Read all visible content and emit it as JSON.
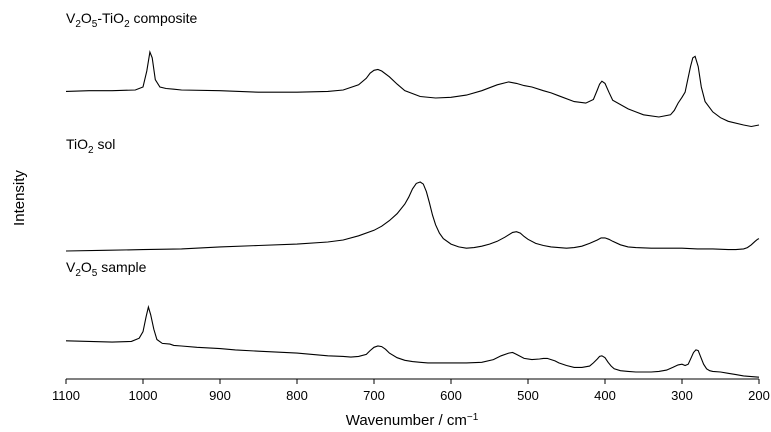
{
  "chart_data": {
    "type": "line",
    "xlabel": "Wavenumber / cm",
    "xlabel_sup": "−1",
    "ylabel": "Intensity",
    "xlim": [
      1100,
      200
    ],
    "x_reversed": true,
    "x_ticks": [
      "1100",
      "1000",
      "900",
      "800",
      "700",
      "600",
      "500",
      "400",
      "300",
      "200"
    ],
    "y_ticks_shown": false,
    "series": [
      {
        "name_parts": [
          {
            "t": "V",
            "sub": false
          },
          {
            "t": "2",
            "sub": true
          },
          {
            "t": "O",
            "sub": false
          },
          {
            "t": "5",
            "sub": true
          },
          {
            "t": "-TiO",
            "sub": false
          },
          {
            "t": "2",
            "sub": true
          },
          {
            "t": " composite",
            "sub": false
          }
        ],
        "x": [
          1100,
          1070,
          1040,
          1010,
          1000,
          995,
          991,
          988,
          984,
          978,
          970,
          960,
          950,
          900,
          850,
          800,
          760,
          740,
          720,
          710,
          705,
          700,
          695,
          690,
          680,
          670,
          660,
          640,
          620,
          600,
          580,
          560,
          540,
          525,
          515,
          505,
          495,
          480,
          470,
          460,
          440,
          425,
          415,
          410,
          407,
          404,
          400,
          395,
          390,
          370,
          350,
          330,
          315,
          310,
          305,
          300,
          296,
          293,
          289,
          286,
          283,
          279,
          275,
          270,
          260,
          250,
          240,
          220,
          210,
          200
        ],
        "y": [
          0.46,
          0.47,
          0.47,
          0.48,
          0.52,
          0.74,
          1.0,
          0.92,
          0.62,
          0.52,
          0.5,
          0.49,
          0.48,
          0.47,
          0.45,
          0.45,
          0.46,
          0.48,
          0.55,
          0.64,
          0.71,
          0.75,
          0.76,
          0.74,
          0.66,
          0.56,
          0.47,
          0.39,
          0.37,
          0.38,
          0.41,
          0.47,
          0.55,
          0.59,
          0.57,
          0.54,
          0.52,
          0.47,
          0.44,
          0.4,
          0.32,
          0.3,
          0.35,
          0.48,
          0.56,
          0.6,
          0.57,
          0.45,
          0.34,
          0.22,
          0.14,
          0.11,
          0.14,
          0.2,
          0.3,
          0.38,
          0.45,
          0.6,
          0.8,
          0.92,
          0.94,
          0.8,
          0.52,
          0.32,
          0.18,
          0.1,
          0.05,
          0.0,
          -0.02,
          0.0
        ]
      },
      {
        "name_parts": [
          {
            "t": "TiO",
            "sub": false
          },
          {
            "t": "2",
            "sub": true
          },
          {
            "t": " sol",
            "sub": false
          }
        ],
        "x": [
          1100,
          1050,
          1000,
          950,
          900,
          850,
          800,
          760,
          740,
          720,
          700,
          690,
          680,
          670,
          660,
          655,
          650,
          645,
          640,
          636,
          632,
          628,
          624,
          620,
          615,
          610,
          600,
          590,
          580,
          570,
          560,
          550,
          540,
          530,
          520,
          515,
          510,
          505,
          500,
          490,
          480,
          470,
          460,
          450,
          440,
          430,
          420,
          410,
          405,
          400,
          395,
          390,
          380,
          370,
          360,
          340,
          320,
          300,
          280,
          260,
          240,
          230,
          220,
          215,
          210,
          205,
          202,
          200
        ],
        "y": [
          0.0,
          0.01,
          0.02,
          0.03,
          0.06,
          0.08,
          0.1,
          0.13,
          0.16,
          0.22,
          0.3,
          0.36,
          0.44,
          0.54,
          0.68,
          0.78,
          0.9,
          0.98,
          1.0,
          0.97,
          0.86,
          0.7,
          0.52,
          0.38,
          0.26,
          0.18,
          0.1,
          0.06,
          0.04,
          0.05,
          0.07,
          0.1,
          0.14,
          0.2,
          0.27,
          0.28,
          0.26,
          0.21,
          0.17,
          0.11,
          0.08,
          0.06,
          0.05,
          0.04,
          0.05,
          0.07,
          0.11,
          0.16,
          0.19,
          0.19,
          0.17,
          0.14,
          0.09,
          0.06,
          0.05,
          0.04,
          0.04,
          0.04,
          0.03,
          0.03,
          0.02,
          0.02,
          0.03,
          0.05,
          0.09,
          0.14,
          0.17,
          0.18
        ]
      },
      {
        "name_parts": [
          {
            "t": "V",
            "sub": false
          },
          {
            "t": "2",
            "sub": true
          },
          {
            "t": "O",
            "sub": false
          },
          {
            "t": "5",
            "sub": true
          },
          {
            "t": " sample",
            "sub": false
          }
        ],
        "x": [
          1100,
          1070,
          1040,
          1015,
          1005,
          1000,
          996,
          993,
          990,
          986,
          982,
          975,
          965,
          960,
          950,
          930,
          900,
          880,
          850,
          800,
          760,
          740,
          730,
          720,
          710,
          705,
          700,
          695,
          690,
          685,
          680,
          670,
          660,
          650,
          640,
          630,
          620,
          600,
          580,
          560,
          545,
          535,
          525,
          520,
          515,
          505,
          495,
          485,
          480,
          475,
          470,
          465,
          460,
          450,
          440,
          430,
          420,
          415,
          410,
          407,
          404,
          400,
          396,
          392,
          388,
          380,
          370,
          360,
          350,
          340,
          330,
          320,
          312,
          305,
          300,
          296,
          292,
          288,
          285,
          282,
          279,
          276,
          272,
          268,
          264,
          260,
          250,
          240,
          230,
          220,
          210,
          200
        ],
        "y": [
          0.48,
          0.47,
          0.46,
          0.47,
          0.52,
          0.62,
          0.85,
          1.0,
          0.88,
          0.66,
          0.5,
          0.44,
          0.43,
          0.41,
          0.4,
          0.38,
          0.36,
          0.34,
          0.32,
          0.29,
          0.25,
          0.24,
          0.23,
          0.24,
          0.27,
          0.33,
          0.38,
          0.4,
          0.39,
          0.35,
          0.29,
          0.22,
          0.18,
          0.16,
          0.15,
          0.14,
          0.14,
          0.14,
          0.14,
          0.15,
          0.19,
          0.25,
          0.29,
          0.3,
          0.27,
          0.21,
          0.19,
          0.2,
          0.21,
          0.21,
          0.19,
          0.17,
          0.14,
          0.1,
          0.07,
          0.07,
          0.09,
          0.14,
          0.2,
          0.24,
          0.25,
          0.22,
          0.15,
          0.09,
          0.05,
          0.02,
          0.01,
          0.0,
          0.0,
          0.0,
          0.01,
          0.03,
          0.07,
          0.11,
          0.12,
          0.1,
          0.12,
          0.22,
          0.3,
          0.34,
          0.33,
          0.24,
          0.12,
          0.05,
          0.02,
          0.01,
          0.0,
          -0.02,
          -0.04,
          -0.06,
          -0.07,
          -0.08
        ]
      }
    ]
  }
}
